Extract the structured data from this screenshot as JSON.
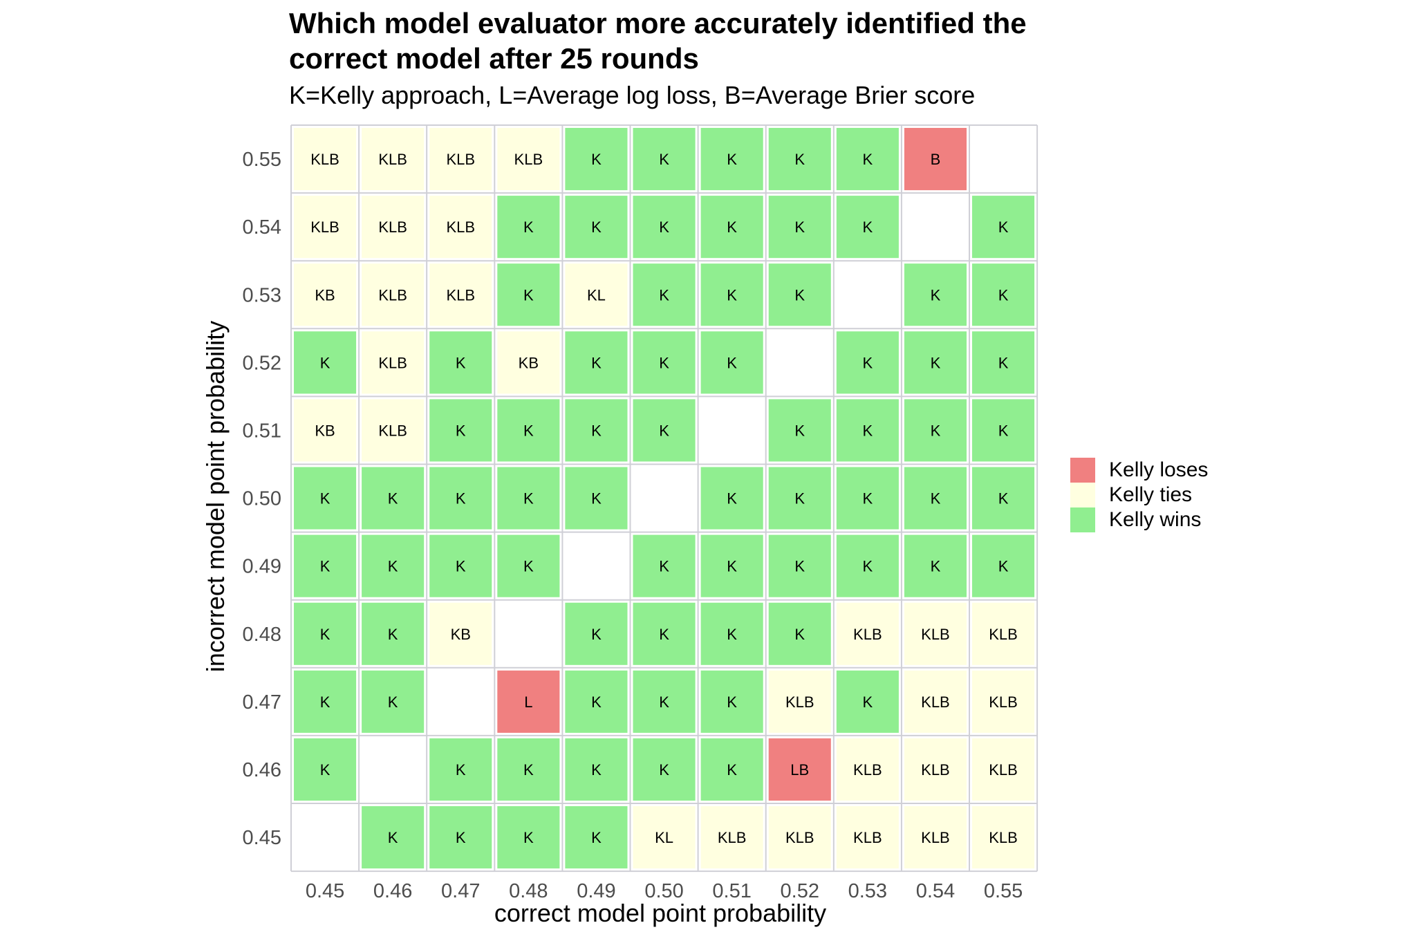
{
  "chart_data": {
    "type": "heatmap",
    "title": "Which model evaluator more accurately identified the correct model after 25 rounds",
    "subtitle": "K=Kelly approach, L=Average log loss, B=Average Brier score",
    "xlabel": "correct model point probability",
    "ylabel": "incorrect model point probability",
    "x": [
      "0.45",
      "0.46",
      "0.47",
      "0.48",
      "0.49",
      "0.50",
      "0.51",
      "0.52",
      "0.53",
      "0.54",
      "0.55"
    ],
    "y": [
      "0.45",
      "0.46",
      "0.47",
      "0.48",
      "0.49",
      "0.50",
      "0.51",
      "0.52",
      "0.53",
      "0.54",
      "0.55"
    ],
    "rows": [
      {
        "y": "0.55",
        "cells": [
          "KLB",
          "KLB",
          "KLB",
          "KLB",
          "K",
          "K",
          "K",
          "K",
          "K",
          "B",
          ""
        ]
      },
      {
        "y": "0.54",
        "cells": [
          "KLB",
          "KLB",
          "KLB",
          "K",
          "K",
          "K",
          "K",
          "K",
          "K",
          "",
          "K"
        ]
      },
      {
        "y": "0.53",
        "cells": [
          "KB",
          "KLB",
          "KLB",
          "K",
          "KL",
          "K",
          "K",
          "K",
          "",
          "K",
          "K"
        ]
      },
      {
        "y": "0.52",
        "cells": [
          "K",
          "KLB",
          "K",
          "KB",
          "K",
          "K",
          "K",
          "",
          "K",
          "K",
          "K"
        ]
      },
      {
        "y": "0.51",
        "cells": [
          "KB",
          "KLB",
          "K",
          "K",
          "K",
          "K",
          "",
          "K",
          "K",
          "K",
          "K"
        ]
      },
      {
        "y": "0.50",
        "cells": [
          "K",
          "K",
          "K",
          "K",
          "K",
          "",
          "K",
          "K",
          "K",
          "K",
          "K"
        ]
      },
      {
        "y": "0.49",
        "cells": [
          "K",
          "K",
          "K",
          "K",
          "",
          "K",
          "K",
          "K",
          "K",
          "K",
          "K"
        ]
      },
      {
        "y": "0.48",
        "cells": [
          "K",
          "K",
          "KB",
          "",
          "K",
          "K",
          "K",
          "K",
          "KLB",
          "KLB",
          "KLB"
        ]
      },
      {
        "y": "0.47",
        "cells": [
          "K",
          "K",
          "",
          "L",
          "K",
          "K",
          "K",
          "KLB",
          "K",
          "KLB",
          "KLB"
        ]
      },
      {
        "y": "0.46",
        "cells": [
          "K",
          "",
          "K",
          "K",
          "K",
          "K",
          "K",
          "LB",
          "KLB",
          "KLB",
          "KLB"
        ]
      },
      {
        "y": "0.45",
        "cells": [
          "",
          "K",
          "K",
          "K",
          "K",
          "KL",
          "KLB",
          "KLB",
          "KLB",
          "KLB",
          "KLB"
        ]
      }
    ],
    "categories": [
      {
        "name": "Kelly loses",
        "color": "#F08080"
      },
      {
        "name": "Kelly ties",
        "color": "#FFFFE0"
      },
      {
        "name": "Kelly wins",
        "color": "#90EE90"
      }
    ],
    "legend": {
      "position": "right"
    }
  }
}
